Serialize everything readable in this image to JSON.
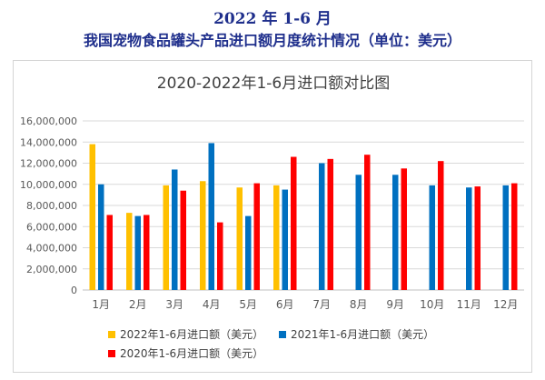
{
  "header": {
    "line1": "2022 年 1-6 月",
    "line2": "我国宠物食品罐头产品进口额月度统计情况（单位：美元）"
  },
  "colors": {
    "series_2022": "#ffc000",
    "series_2021": "#0070c0",
    "series_2020": "#ff0000",
    "header_text": "#1f2f8c"
  },
  "chart_data": {
    "type": "bar",
    "title": "2020-2022年1-6月进口额对比图",
    "categories": [
      "1月",
      "2月",
      "3月",
      "4月",
      "5月",
      "6月",
      "7月",
      "8月",
      "9月",
      "10月",
      "11月",
      "12月"
    ],
    "ylim": [
      0,
      16000000
    ],
    "yticks": [
      "0",
      "2,000,000",
      "4,000,000",
      "6,000,000",
      "8,000,000",
      "10,000,000",
      "12,000,000",
      "14,000,000",
      "16,000,000"
    ],
    "grid": true,
    "legend_position": "bottom",
    "series": [
      {
        "name": "2022年1-6月进口额（美元）",
        "values": [
          13800000,
          7300000,
          9900000,
          10300000,
          9700000,
          9900000,
          null,
          null,
          null,
          null,
          null,
          null
        ]
      },
      {
        "name": "2021年1-6月进口额（美元）",
        "values": [
          10000000,
          7000000,
          11400000,
          13900000,
          7000000,
          9500000,
          12000000,
          10900000,
          10900000,
          9900000,
          9700000,
          9900000
        ]
      },
      {
        "name": "2020年1-6月进口额（美元）",
        "values": [
          7100000,
          7100000,
          9400000,
          6400000,
          10100000,
          12600000,
          12400000,
          12800000,
          11500000,
          12200000,
          9800000,
          10100000
        ]
      }
    ]
  }
}
